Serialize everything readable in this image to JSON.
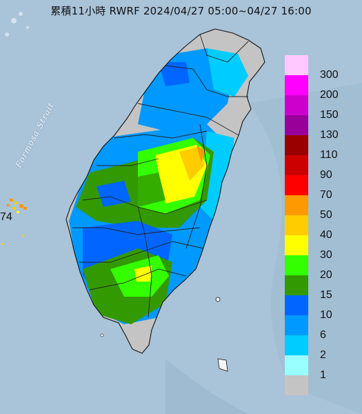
{
  "title": "累積11小時 RWRF 2024/04/27 05:00~04/27 16:00",
  "map": {
    "strait_label": "Formosa Strait",
    "edge_label": "74",
    "sea_color": "#a9c3d8",
    "land_color": "#c4c4c4"
  },
  "legend": {
    "items": [
      {
        "label": "300",
        "color": "#ffc8ff"
      },
      {
        "label": "200",
        "color": "#ff00ff"
      },
      {
        "label": "150",
        "color": "#cc00cc"
      },
      {
        "label": "130",
        "color": "#990099"
      },
      {
        "label": "110",
        "color": "#990000"
      },
      {
        "label": "90",
        "color": "#cc0000"
      },
      {
        "label": "70",
        "color": "#ff0000"
      },
      {
        "label": "50",
        "color": "#ff9900"
      },
      {
        "label": "40",
        "color": "#ffcc00"
      },
      {
        "label": "30",
        "color": "#ffff00"
      },
      {
        "label": "20",
        "color": "#33ff00"
      },
      {
        "label": "15",
        "color": "#339900"
      },
      {
        "label": "10",
        "color": "#0066ff"
      },
      {
        "label": "6",
        "color": "#0099ff"
      },
      {
        "label": "2",
        "color": "#00ccff"
      },
      {
        "label": "1",
        "color": "#99ffff"
      },
      {
        "label": "",
        "color": "#c4c4c4"
      }
    ]
  }
}
